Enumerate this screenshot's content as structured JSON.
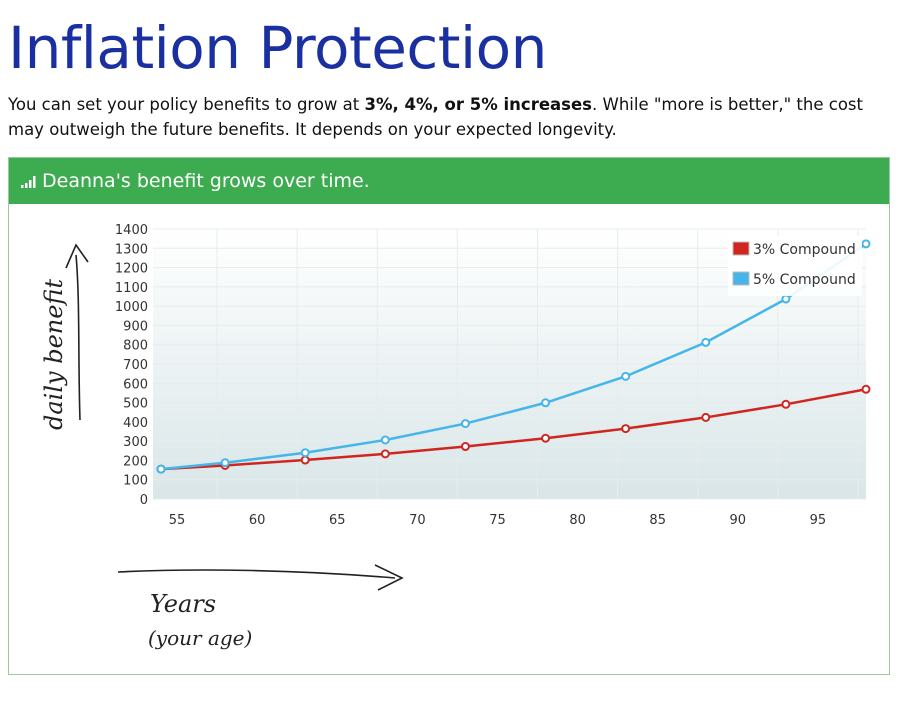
{
  "page": {
    "title": "Inflation Protection",
    "intro_pre": "You can set your policy benefits to grow at ",
    "intro_bold": "3%, 4%, or 5% increases",
    "intro_post": ". While \"more is better,\" the cost may outweigh the future benefits. It depends on your expected longevity."
  },
  "panel": {
    "title": "Deanna's benefit grows over time.",
    "icon": "bar-chart-icon"
  },
  "annotations": {
    "y": "daily benefit",
    "x_line1": "Years",
    "x_line2": "(your age)"
  },
  "chart_data": {
    "type": "line",
    "title": "Deanna's benefit grows over time.",
    "xlabel": "Years (your age)",
    "ylabel": "daily benefit",
    "x": [
      54,
      58,
      63,
      68,
      73,
      78,
      83,
      88,
      93,
      98
    ],
    "series": [
      {
        "name": "3% Compound",
        "color": "#d0261f",
        "values": [
          155,
          174,
          202,
          234,
          272,
          315,
          365,
          423,
          491,
          569
        ]
      },
      {
        "name": "5% Compound",
        "color": "#45b5ea",
        "values": [
          155,
          188,
          240,
          306,
          391,
          499,
          636,
          812,
          1037,
          1323
        ]
      }
    ],
    "xlim": [
      53.5,
      98
    ],
    "ylim": [
      0,
      1400
    ],
    "xticks": [
      55,
      60,
      65,
      70,
      75,
      80,
      85,
      90,
      95
    ],
    "yticks": [
      0,
      100,
      200,
      300,
      400,
      500,
      600,
      700,
      800,
      900,
      1000,
      1100,
      1200,
      1300,
      1400
    ],
    "grid": true,
    "legend": "top-right"
  }
}
